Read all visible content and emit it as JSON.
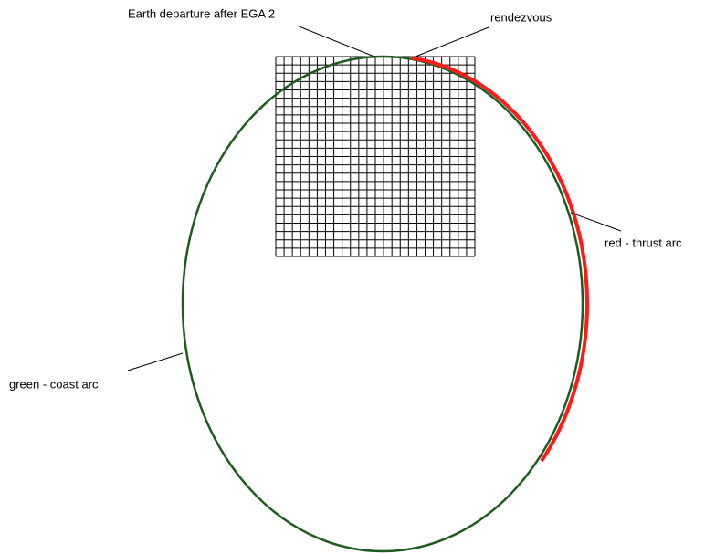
{
  "labels": {
    "departure": "Earth departure after EGA 2",
    "rendezvous": "rendezvous",
    "thrust": "red -  thrust arc",
    "coast": "green -  coast arc"
  }
}
